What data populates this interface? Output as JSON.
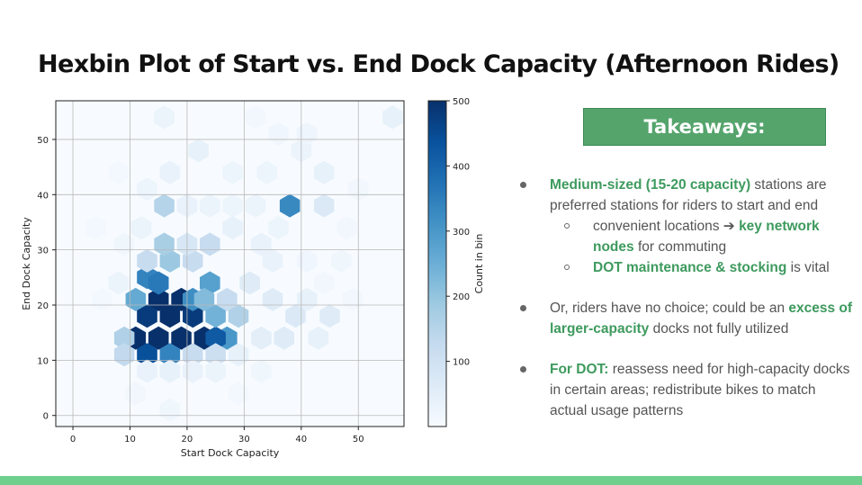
{
  "title": "Hexbin Plot of Start vs. End Dock Capacity (Afternoon Rides)",
  "takeaways": {
    "heading": "Takeaways:",
    "b1": {
      "hl": "Medium-sized (15-20 capacity)",
      "text": " stations are preferred stations for riders to start and end"
    },
    "b1s1": {
      "text": "convenient locations ➔ ",
      "hl": "key network nodes",
      "text2": " for commuting"
    },
    "b1s2": {
      "hl": "DOT maintenance & stocking",
      "text": " is vital"
    },
    "b2": {
      "text": "Or, riders have no choice;  could be an ",
      "hl": "excess of larger-capacity",
      "text2": " docks not fully utilized"
    },
    "b3": {
      "hl": "For DOT:",
      "text": " reassess need for high-capacity docks in certain areas; redistribute bikes to match actual usage patterns"
    }
  },
  "colors": {
    "accent": "#55a46c",
    "highlight": "#3e9a5e",
    "footer": "#6fcf8d"
  },
  "chart_data": {
    "type": "heatmap",
    "subtype": "hexbin",
    "xlabel": "Start Dock Capacity",
    "ylabel": "End Dock Capacity",
    "colorbar_label": "Count in bin",
    "colormap": "Blues",
    "xlim": [
      -3,
      58
    ],
    "ylim": [
      -2,
      57
    ],
    "xticks": [
      0,
      10,
      20,
      30,
      40,
      50
    ],
    "yticks": [
      0,
      10,
      20,
      30,
      40,
      50
    ],
    "colorbar_ticks": [
      100,
      200,
      300,
      400,
      500
    ],
    "colorbar_range": [
      0,
      500
    ],
    "grid": true,
    "bins": [
      {
        "x": 15,
        "y": 21,
        "count": 500
      },
      {
        "x": 19,
        "y": 21,
        "count": 500
      },
      {
        "x": 17,
        "y": 18,
        "count": 500
      },
      {
        "x": 13,
        "y": 18,
        "count": 480
      },
      {
        "x": 21,
        "y": 18,
        "count": 480
      },
      {
        "x": 11,
        "y": 14,
        "count": 500
      },
      {
        "x": 15,
        "y": 14,
        "count": 500
      },
      {
        "x": 19,
        "y": 14,
        "count": 500
      },
      {
        "x": 23,
        "y": 14,
        "count": 500
      },
      {
        "x": 27,
        "y": 14,
        "count": 300
      },
      {
        "x": 25,
        "y": 14,
        "count": 420
      },
      {
        "x": 13,
        "y": 11,
        "count": 440
      },
      {
        "x": 17,
        "y": 11,
        "count": 340
      },
      {
        "x": 13,
        "y": 25,
        "count": 340
      },
      {
        "x": 15,
        "y": 24,
        "count": 360
      },
      {
        "x": 24,
        "y": 24,
        "count": 280
      },
      {
        "x": 11,
        "y": 21,
        "count": 260
      },
      {
        "x": 21,
        "y": 21,
        "count": 320
      },
      {
        "x": 25,
        "y": 18,
        "count": 240
      },
      {
        "x": 29,
        "y": 18,
        "count": 160
      },
      {
        "x": 23,
        "y": 21,
        "count": 220
      },
      {
        "x": 27,
        "y": 21,
        "count": 120
      },
      {
        "x": 17,
        "y": 28,
        "count": 190
      },
      {
        "x": 21,
        "y": 28,
        "count": 120
      },
      {
        "x": 13,
        "y": 28,
        "count": 120
      },
      {
        "x": 9,
        "y": 14,
        "count": 160
      },
      {
        "x": 9,
        "y": 11,
        "count": 130
      },
      {
        "x": 21,
        "y": 11,
        "count": 120
      },
      {
        "x": 25,
        "y": 11,
        "count": 110
      },
      {
        "x": 16,
        "y": 31,
        "count": 170
      },
      {
        "x": 24,
        "y": 31,
        "count": 120
      },
      {
        "x": 20,
        "y": 31,
        "count": 80
      },
      {
        "x": 38,
        "y": 38,
        "count": 330
      },
      {
        "x": 16,
        "y": 38,
        "count": 150
      },
      {
        "x": 44,
        "y": 38,
        "count": 70
      },
      {
        "x": 35,
        "y": 21,
        "count": 60
      },
      {
        "x": 39,
        "y": 18,
        "count": 70
      },
      {
        "x": 45,
        "y": 18,
        "count": 60
      },
      {
        "x": 33,
        "y": 14,
        "count": 50
      },
      {
        "x": 37,
        "y": 14,
        "count": 60
      },
      {
        "x": 43,
        "y": 14,
        "count": 40
      },
      {
        "x": 17,
        "y": 44,
        "count": 35
      },
      {
        "x": 22,
        "y": 48,
        "count": 40
      },
      {
        "x": 16,
        "y": 54,
        "count": 30
      },
      {
        "x": 40,
        "y": 48,
        "count": 30
      },
      {
        "x": 56,
        "y": 54,
        "count": 40
      },
      {
        "x": 44,
        "y": 44,
        "count": 40
      },
      {
        "x": 28,
        "y": 44,
        "count": 25
      },
      {
        "x": 34,
        "y": 44,
        "count": 25
      },
      {
        "x": 12,
        "y": 34,
        "count": 30
      },
      {
        "x": 8,
        "y": 24,
        "count": 30
      },
      {
        "x": 9,
        "y": 31,
        "count": 20
      },
      {
        "x": 13,
        "y": 41,
        "count": 25
      },
      {
        "x": 20,
        "y": 38,
        "count": 35
      },
      {
        "x": 24,
        "y": 38,
        "count": 30
      },
      {
        "x": 28,
        "y": 38,
        "count": 25
      },
      {
        "x": 32,
        "y": 38,
        "count": 30
      },
      {
        "x": 28,
        "y": 34,
        "count": 40
      },
      {
        "x": 33,
        "y": 31,
        "count": 35
      },
      {
        "x": 36,
        "y": 34,
        "count": 25
      },
      {
        "x": 31,
        "y": 24,
        "count": 60
      },
      {
        "x": 35,
        "y": 28,
        "count": 35
      },
      {
        "x": 41,
        "y": 21,
        "count": 40
      },
      {
        "x": 29,
        "y": 11,
        "count": 40
      },
      {
        "x": 33,
        "y": 8,
        "count": 20
      },
      {
        "x": 13,
        "y": 8,
        "count": 35
      },
      {
        "x": 17,
        "y": 8,
        "count": 40
      },
      {
        "x": 21,
        "y": 8,
        "count": 35
      },
      {
        "x": 25,
        "y": 8,
        "count": 30
      },
      {
        "x": 11,
        "y": 4,
        "count": 15
      },
      {
        "x": 17,
        "y": 1,
        "count": 20
      },
      {
        "x": 29,
        "y": 4,
        "count": 12
      },
      {
        "x": 49,
        "y": 21,
        "count": 15
      },
      {
        "x": 47,
        "y": 28,
        "count": 20
      },
      {
        "x": 50,
        "y": 41,
        "count": 15
      },
      {
        "x": 4,
        "y": 34,
        "count": 12
      },
      {
        "x": 48,
        "y": 34,
        "count": 15
      },
      {
        "x": 41,
        "y": 28,
        "count": 18
      },
      {
        "x": 41,
        "y": 51,
        "count": 22
      },
      {
        "x": 8,
        "y": 44,
        "count": 12
      },
      {
        "x": 32,
        "y": 54,
        "count": 15
      },
      {
        "x": 36,
        "y": 51,
        "count": 18
      },
      {
        "x": 5,
        "y": 21,
        "count": 12
      },
      {
        "x": 44,
        "y": 24,
        "count": 15
      }
    ]
  }
}
